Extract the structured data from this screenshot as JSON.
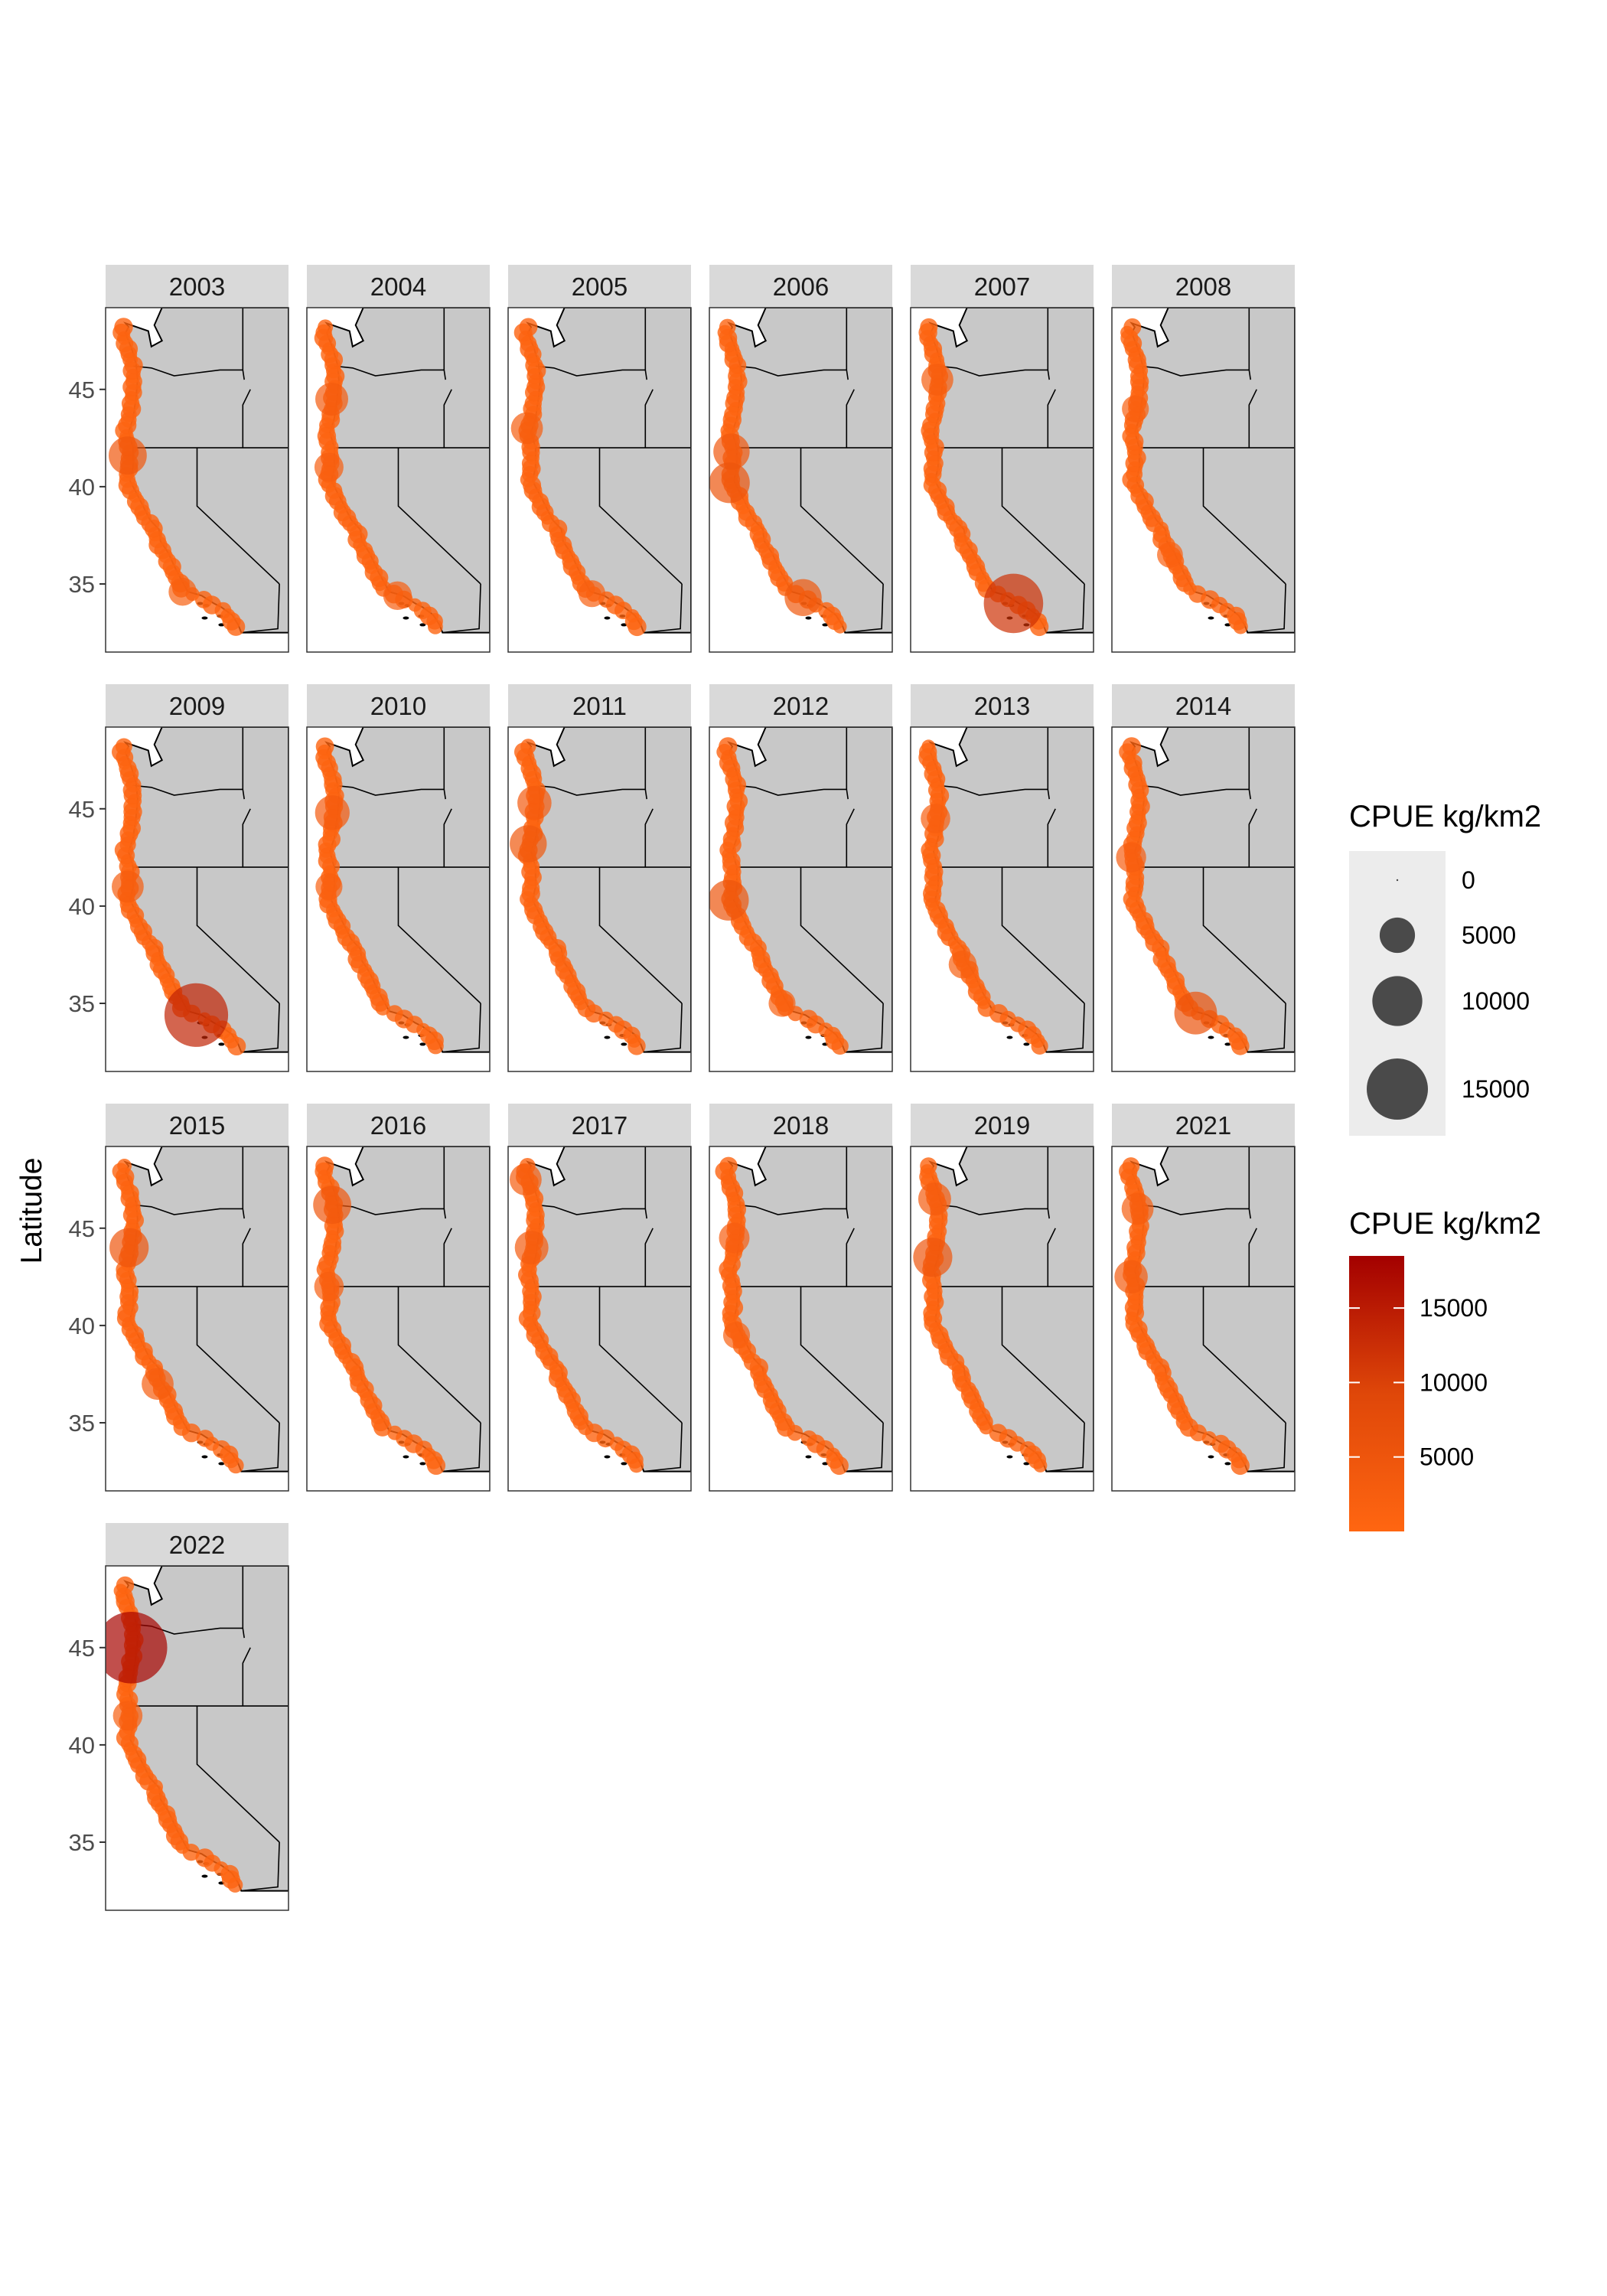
{
  "chart_data": {
    "type": "scatter",
    "ylabel": "Latitude",
    "xlabel": "",
    "ylim": [
      31.5,
      49.2
    ],
    "xlim": [
      -126,
      -114
    ],
    "yticks": [
      35,
      40,
      45
    ],
    "panels": [
      {
        "year": "2003",
        "big": [
          {
            "lat": 41.6,
            "cpue": 4500
          },
          {
            "lat": 34.6,
            "cpue": 2200
          }
        ]
      },
      {
        "year": "2004",
        "big": [
          {
            "lat": 44.5,
            "cpue": 3200
          },
          {
            "lat": 41.0,
            "cpue": 2400
          },
          {
            "lat": 34.4,
            "cpue": 2300
          }
        ]
      },
      {
        "year": "2005",
        "big": [
          {
            "lat": 43.0,
            "cpue": 3000
          },
          {
            "lat": 34.5,
            "cpue": 2000
          }
        ]
      },
      {
        "year": "2006",
        "big": [
          {
            "lat": 41.8,
            "cpue": 4000
          },
          {
            "lat": 40.2,
            "cpue": 5200
          },
          {
            "lat": 34.3,
            "cpue": 4200
          }
        ]
      },
      {
        "year": "2007",
        "big": [
          {
            "lat": 45.5,
            "cpue": 3000
          },
          {
            "lat": 34.0,
            "cpue": 12000
          }
        ]
      },
      {
        "year": "2008",
        "big": [
          {
            "lat": 44.0,
            "cpue": 2000
          },
          {
            "lat": 36.5,
            "cpue": 1800
          }
        ]
      },
      {
        "year": "2009",
        "big": [
          {
            "lat": 41.0,
            "cpue": 3000
          },
          {
            "lat": 34.4,
            "cpue": 14000
          }
        ]
      },
      {
        "year": "2010",
        "big": [
          {
            "lat": 44.8,
            "cpue": 3600
          },
          {
            "lat": 41.0,
            "cpue": 2000
          }
        ]
      },
      {
        "year": "2011",
        "big": [
          {
            "lat": 45.3,
            "cpue": 3500
          },
          {
            "lat": 43.2,
            "cpue": 4200
          }
        ]
      },
      {
        "year": "2012",
        "big": [
          {
            "lat": 40.3,
            "cpue": 5200
          },
          {
            "lat": 35.0,
            "cpue": 2000
          }
        ]
      },
      {
        "year": "2013",
        "big": [
          {
            "lat": 44.5,
            "cpue": 2500
          },
          {
            "lat": 37.0,
            "cpue": 2200
          }
        ]
      },
      {
        "year": "2014",
        "big": [
          {
            "lat": 42.5,
            "cpue": 2600
          },
          {
            "lat": 34.5,
            "cpue": 5800
          }
        ]
      },
      {
        "year": "2015",
        "big": [
          {
            "lat": 44.0,
            "cpue": 4800
          },
          {
            "lat": 37.0,
            "cpue": 3000
          }
        ]
      },
      {
        "year": "2016",
        "big": [
          {
            "lat": 46.2,
            "cpue": 4500
          },
          {
            "lat": 42.0,
            "cpue": 2500
          }
        ]
      },
      {
        "year": "2017",
        "big": [
          {
            "lat": 47.5,
            "cpue": 3000
          },
          {
            "lat": 44.0,
            "cpue": 3400
          }
        ]
      },
      {
        "year": "2018",
        "big": [
          {
            "lat": 44.5,
            "cpue": 2700
          },
          {
            "lat": 39.5,
            "cpue": 2000
          }
        ]
      },
      {
        "year": "2019",
        "big": [
          {
            "lat": 46.5,
            "cpue": 3200
          },
          {
            "lat": 43.5,
            "cpue": 4800
          }
        ]
      },
      {
        "year": "2021",
        "big": [
          {
            "lat": 46.0,
            "cpue": 3000
          },
          {
            "lat": 42.5,
            "cpue": 3300
          }
        ]
      },
      {
        "year": "2022",
        "big": [
          {
            "lat": 45.0,
            "cpue": 18000
          },
          {
            "lat": 41.5,
            "cpue": 2500
          }
        ]
      }
    ],
    "legend_size": {
      "title": "CPUE kg/km2",
      "breaks": [
        0,
        5000,
        10000,
        15000
      ]
    },
    "legend_color": {
      "title": "CPUE kg/km2",
      "breaks": [
        5000,
        10000,
        15000
      ],
      "range": [
        0,
        18500
      ],
      "low": "#ff6611",
      "high": "#a30000"
    }
  }
}
